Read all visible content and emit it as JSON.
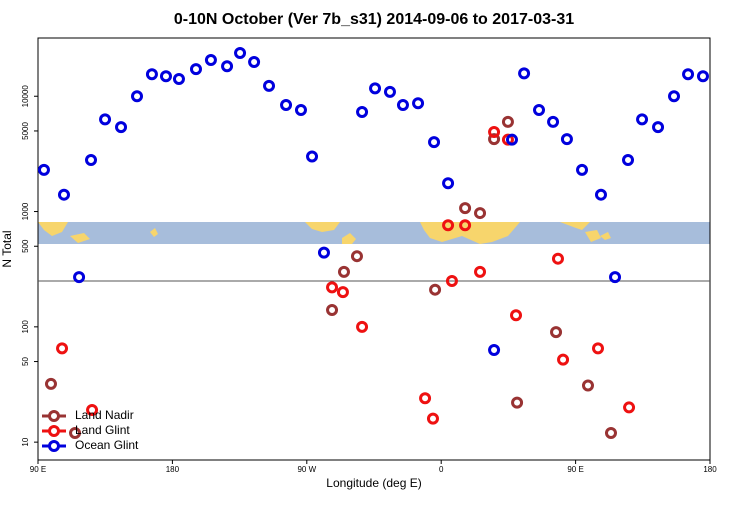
{
  "chart_data": {
    "type": "scatter",
    "title": "0-10N October (Ver 7b_s31)   2014-09-06 to 2017-03-31",
    "xlabel": "Longitude (deg E)",
    "ylabel": "N Total",
    "xlim": [
      90,
      540
    ],
    "xticks": [
      {
        "value": 90,
        "label": "90 E"
      },
      {
        "value": 180,
        "label": "180"
      },
      {
        "value": 270,
        "label": "90 W"
      },
      {
        "value": 360,
        "label": "0"
      },
      {
        "value": 450,
        "label": "90 E"
      },
      {
        "value": 540,
        "label": "180"
      }
    ],
    "ylim": [
      7,
      32000
    ],
    "log_y": true,
    "yticks": [
      10,
      50,
      100,
      500,
      1000,
      5000,
      10000
    ],
    "hline": 250,
    "legend": "bottom left",
    "series": [
      {
        "name": "Land Nadir",
        "color": "#993333",
        "x": [
          98.7,
          114.8,
          294.9,
          303.6,
          286.9,
          355.9,
          376,
          386,
          395.4,
          404.7,
          410.8,
          436.9,
          458.3,
          473.7
        ],
        "values": [
          32,
          12,
          300,
          410,
          140,
          210,
          1070,
          970,
          4250,
          6000,
          22,
          90,
          31,
          12
        ]
      },
      {
        "name": "Land Glint",
        "color": "#ee1111",
        "x": [
          106.1,
          126.2,
          286.9,
          294.2,
          307,
          349.2,
          354.5,
          364.6,
          367.2,
          376,
          386,
          395.4,
          404.7,
          410.1,
          438.2,
          441.6,
          465,
          485.8
        ],
        "values": [
          65,
          19,
          220,
          200,
          100,
          24,
          16,
          760,
          250,
          760,
          300,
          4900,
          4200,
          126,
          390,
          52,
          65,
          20
        ]
      },
      {
        "name": "Ocean Glint",
        "color": "#0000dd",
        "x": [
          94,
          107.4,
          117.5,
          125.5,
          134.9,
          145.6,
          156.3,
          166.3,
          175.7,
          184.4,
          195.8,
          205.8,
          216.6,
          225.3,
          234.7,
          244.7,
          256.1,
          266.1,
          273.5,
          281.5,
          307,
          315.7,
          325.7,
          334.4,
          344.5,
          355.2,
          364.6,
          395.4,
          407.4,
          415.5,
          425.5,
          434.9,
          444.2,
          454.3,
          467,
          476.4,
          485.1,
          494.5,
          505.2,
          515.9,
          525.3,
          535.3
        ],
        "values": [
          2300,
          1400,
          270,
          2800,
          6300,
          5400,
          10000,
          15500,
          14900,
          14100,
          17200,
          20600,
          18200,
          23700,
          19800,
          12300,
          8400,
          7600,
          3000,
          440,
          7300,
          11700,
          10900,
          8400,
          8700,
          4000,
          1760,
          63,
          4200,
          15800,
          7600,
          6000,
          4250,
          2300,
          1400,
          270,
          2800,
          6300,
          5400,
          10000,
          15500,
          14900
        ]
      }
    ]
  }
}
